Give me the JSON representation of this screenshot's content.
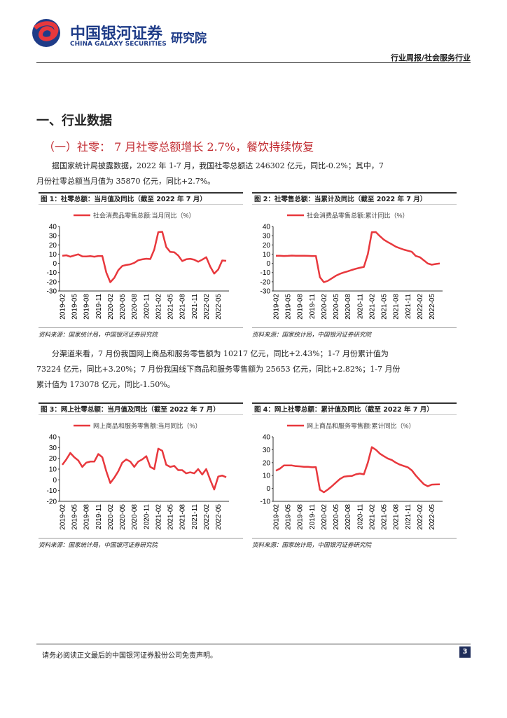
{
  "header": {
    "brand": "中国银河证券",
    "brand_en": "CHINA GALAXY SECURITIES",
    "institute": "研究院",
    "report_type": "行业周报/社会服务行业"
  },
  "section_title": "一、行业数据",
  "subsection_title": "（一）社零： 7 月社零总额增长 2.7%，餐饮持续恢复",
  "paragraphs": [
    "据国家统计局披露数据，2022 年 1-7 月，我国社零总额达 246302 亿元，同比-0.2%；其中，7 月份社零总额当月值为 35870 亿元，同比+2.7%。",
    "分渠道来看，7 月份我国网上商品和服务零售额为 10217 亿元，同比+2.43%；1-7 月份累计值为 73224 亿元，同比+3.20%；7 月份我国线下商品和服务零售额为 25653 亿元，同比+2.82%；1-7 月份累计值为 173078 亿元，同比-1.50%。"
  ],
  "figures": [
    {
      "title": "图 1：社零总额：当月值及同比（截至 2022 年 7 月）",
      "source": "资料来源：国家统计局，中国银河证券研究院"
    },
    {
      "title": "图 2：社零售总额：当累计及同比（截至 2022 年 7 月）",
      "source": "资料来源：国家统计局，中国银河证券研究院"
    },
    {
      "title": "图 3：网上社零总额：当月值及同比（截至 2022 年 7 月）",
      "source": "资料来源：国家统计局，中国银河证券研究院"
    },
    {
      "title": "图 4：网上社零总额：累计值及同比（截至 2022 年 7 月）",
      "source": "资料来源：国家统计局，中国银河证券研究院"
    }
  ],
  "chart_data": [
    {
      "type": "line",
      "categories": [
        "2019-02",
        null,
        null,
        "2019-05",
        null,
        null,
        "2019-08",
        null,
        null,
        "2019-11",
        null,
        null,
        "2020-02",
        null,
        null,
        "2020-05",
        null,
        null,
        "2020-08",
        null,
        null,
        "2020-11",
        null,
        null,
        "2021-02",
        null,
        null,
        "2021-05",
        null,
        null,
        "2021-08",
        null,
        null,
        "2021-11",
        null,
        null,
        "2022-02",
        null,
        null,
        "2022-05",
        null,
        null
      ],
      "series": [
        {
          "name": "社会消费品零售总额:当月同比（%）",
          "color": "#e8383d",
          "values": [
            8.2,
            8.7,
            7.2,
            8.6,
            9.8,
            7.6,
            7.5,
            7.8,
            7.2,
            8.0,
            8.0,
            -10,
            -20.5,
            -15.8,
            -7.5,
            -2.8,
            -1.8,
            -1.1,
            0.5,
            3.3,
            4.3,
            5.0,
            4.6,
            15,
            33.8,
            34.2,
            17.7,
            12.4,
            12.1,
            8.5,
            2.5,
            4.4,
            4.9,
            3.9,
            1.7,
            4,
            6.7,
            -3.5,
            -11.1,
            -6.7,
            3.1,
            2.7
          ]
        }
      ],
      "ylim": [
        -30,
        40
      ],
      "yticks": [
        -30,
        -20,
        -10,
        0,
        10,
        20,
        30,
        40
      ]
    },
    {
      "type": "line",
      "categories": [
        "2019-02",
        null,
        null,
        "2019-05",
        null,
        null,
        "2019-08",
        null,
        null,
        "2019-11",
        null,
        null,
        "2020-02",
        null,
        null,
        "2020-05",
        null,
        null,
        "2020-08",
        null,
        null,
        "2020-11",
        null,
        null,
        "2021-02",
        null,
        null,
        "2021-05",
        null,
        null,
        "2021-08",
        null,
        null,
        "2021-11",
        null,
        null,
        "2022-02",
        null,
        null,
        "2022-05",
        null,
        null
      ],
      "series": [
        {
          "name": "社会消费品零售总额:累计同比（%）",
          "color": "#e8383d",
          "values": [
            8.2,
            8.3,
            8.0,
            8.1,
            8.4,
            8.3,
            8.2,
            8.2,
            8.1,
            8.0,
            8.0,
            -15,
            -20.5,
            -19.0,
            -16.2,
            -13.5,
            -11.4,
            -9.9,
            -8.6,
            -7.2,
            -5.9,
            -4.8,
            -3.9,
            10,
            33.8,
            33.9,
            29.6,
            25.7,
            23.0,
            20.7,
            18.1,
            16.4,
            14.9,
            13.7,
            12.5,
            8,
            6.7,
            3.3,
            -0.2,
            -1.5,
            -0.7,
            -0.2
          ]
        }
      ],
      "ylim": [
        -30,
        40
      ],
      "yticks": [
        -30,
        -20,
        -10,
        0,
        10,
        20,
        30,
        40
      ]
    },
    {
      "type": "line",
      "categories": [
        "2019-02",
        null,
        null,
        "2019-05",
        null,
        null,
        "2019-08",
        null,
        null,
        "2019-11",
        null,
        null,
        "2020-02",
        null,
        null,
        "2020-05",
        null,
        null,
        "2020-08",
        null,
        null,
        "2020-11",
        null,
        null,
        "2021-02",
        null,
        null,
        "2021-05",
        null,
        null,
        "2021-08",
        null,
        null,
        "2021-11",
        null,
        null,
        "2022-02",
        null,
        null,
        "2022-05",
        null,
        null
      ],
      "series": [
        {
          "name": "网上商品和服务零售额:当月同比（%）",
          "color": "#e8383d",
          "values": [
            14,
            19,
            25,
            21,
            18,
            12,
            16,
            17,
            17,
            24,
            21,
            8,
            -3,
            2,
            8,
            16,
            19,
            17,
            12,
            17,
            19,
            22,
            12,
            10,
            29,
            27,
            14,
            12,
            13,
            9,
            9,
            6,
            7,
            6,
            10,
            5,
            10,
            0,
            -9,
            3,
            4,
            2.4
          ]
        }
      ],
      "ylim": [
        -20,
        40
      ],
      "yticks": [
        -20,
        -10,
        0,
        10,
        20,
        30,
        40
      ]
    },
    {
      "type": "line",
      "categories": [
        "2019-02",
        null,
        null,
        "2019-05",
        null,
        null,
        "2019-08",
        null,
        null,
        "2019-11",
        null,
        null,
        "2020-02",
        null,
        null,
        "2020-05",
        null,
        null,
        "2020-08",
        null,
        null,
        "2020-11",
        null,
        null,
        "2021-02",
        null,
        null,
        "2021-05",
        null,
        null,
        "2021-08",
        null,
        null,
        "2021-11",
        null,
        null,
        "2022-02",
        null,
        null,
        "2022-05",
        null,
        null
      ],
      "series": [
        {
          "name": "网上商品和服务零售额:累计同比（%）",
          "color": "#e8383d",
          "values": [
            13.8,
            15.3,
            17.8,
            17.8,
            17.8,
            17.3,
            17.1,
            16.8,
            16.8,
            16.4,
            16.5,
            -1,
            -3,
            -0.8,
            1.7,
            4.5,
            7.3,
            9.1,
            9.5,
            9.7,
            10.9,
            11.5,
            10.9,
            20,
            32,
            30,
            27,
            25,
            23.2,
            22,
            20,
            18.5,
            17.4,
            16.4,
            14.1,
            10,
            6.6,
            3.3,
            1.7,
            3.0,
            3.1,
            3.2
          ]
        }
      ],
      "ylim": [
        -10,
        40
      ],
      "yticks": [
        -10,
        0,
        10,
        20,
        30,
        40
      ]
    }
  ],
  "footer": {
    "disclaimer": "请务必阅读正文最后的中国银河证券股份公司免责声明。",
    "page": "3"
  }
}
